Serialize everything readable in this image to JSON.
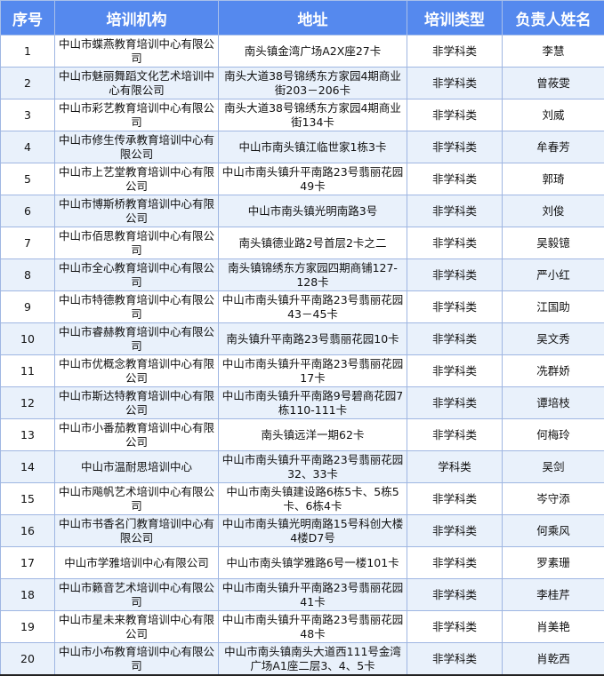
{
  "headers": [
    "序号",
    "培训机构",
    "地址",
    "培训类型",
    "负责人姓名"
  ],
  "rows": [
    [
      "1",
      "中山市蝶燕教育培训中心有限公司",
      "南头镇金湾广场A2X座27卡",
      "非学科类",
      "李慧"
    ],
    [
      "2",
      "中山市魅丽舞蹈文化艺术培训中心有限公司",
      "南头大道38号锦绣东方家园4期商业街203－206卡",
      "非学科类",
      "曾莜雯"
    ],
    [
      "3",
      "中山市彩艺教育培训中心有限公司",
      "南头大道38号锦绣东方家园4期商业街134卡",
      "非学科类",
      "刘威"
    ],
    [
      "4",
      "中山市修生传承教育培训中心有限公司",
      "中山市南头镇江临世家1栋3卡",
      "非学科类",
      "牟春芳"
    ],
    [
      "5",
      "中山市上艺堂教育培训中心有限公司",
      "中山市南头镇升平南路23号翡丽花园49卡",
      "非学科类",
      "郭琦"
    ],
    [
      "6",
      "中山市博斯桥教育培训中心有限公司",
      "中山市南头镇光明南路3号",
      "非学科类",
      "刘俊"
    ],
    [
      "7",
      "中山市佰思教育培训中心有限公司",
      "南头镇德业路2号首层2卡之二",
      "非学科类",
      "吴毅镱"
    ],
    [
      "8",
      "中山市全心教育培训中心有限公司",
      "南头镇锦绣东方家园四期商铺127-128卡",
      "非学科类",
      "严小红"
    ],
    [
      "9",
      "中山市特德教育培训中心有限公司",
      "中山市南头镇升平南路23号翡丽花园43－45卡",
      "非学科类",
      "江国助"
    ],
    [
      "10",
      "中山市睿赫教育培训中心有限公司",
      "南头镇升平南路23号翡丽花园10卡",
      "非学科类",
      "吴文秀"
    ],
    [
      "11",
      "中山市优概念教育培训中心有限公司",
      "中山市南头镇升平南路23号翡丽花园17卡",
      "非学科类",
      "冼群娇"
    ],
    [
      "12",
      "中山市斯达特教育培训中心有限公司",
      "中山市南头镇升平南路9号碧商花园7栋110-111卡",
      "非学科类",
      "谭培枝"
    ],
    [
      "13",
      "中山市小番茄教育培训中心有限公司",
      "南头镇远洋一期62卡",
      "非学科类",
      "何梅玲"
    ],
    [
      "14",
      "中山市温耐思培训中心",
      "中山市南头镇升平南路23号翡丽花园32、33卡",
      "学科类",
      "吴剑"
    ],
    [
      "15",
      "中山市飚帆艺术培训中心有限公司",
      "中山市南头镇建设路6栋5卡、5栋5卡、6栋4卡",
      "非学科类",
      "岑守添"
    ],
    [
      "16",
      "中山市书香名门教育培训中心有限公司",
      "中山市南头镇光明南路15号科创大楼4楼D7号",
      "非学科类",
      "何乘风"
    ],
    [
      "17",
      "中山市学雅培训中心有限公司",
      "中山市南头镇学雅路6号一楼101卡",
      "非学科类",
      "罗素珊"
    ],
    [
      "18",
      "中山市籁音艺术培训中心有限公司",
      "中山市南头镇升平南路23号翡丽花园41卡",
      "非学科类",
      "李桂芹"
    ],
    [
      "19",
      "中山市星未来教育培训中心有限公司",
      "中山市南头镇升平南路23号翡丽花园48卡",
      "非学科类",
      "肖美艳"
    ],
    [
      "20",
      "中山市小布教育培训中心有限公司",
      "中山市南头镇南头大道西111号金湾广场A1座二层3、4、5卡",
      "非学科类",
      "肖乾西"
    ]
  ]
}
